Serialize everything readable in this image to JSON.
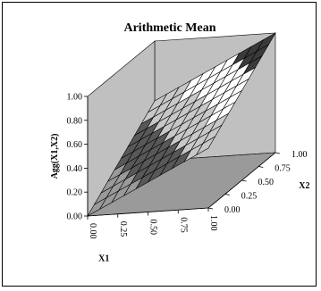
{
  "chart_data": {
    "type": "surface",
    "title": "Arithmetic Mean",
    "xlabel": "X1",
    "ylabel": "X2",
    "zlabel": "Agg(X1,X2)",
    "x_ticks": [
      "0.00",
      "0.25",
      "0.50",
      "0.75",
      "1.00"
    ],
    "y_ticks": [
      "0.00",
      "0.25",
      "0.50",
      "0.75",
      "1.00"
    ],
    "z_ticks": [
      "0.00",
      "0.20",
      "0.40",
      "0.60",
      "0.80",
      "1.00"
    ],
    "xlim": [
      0,
      1
    ],
    "ylim": [
      0,
      1
    ],
    "zlim": [
      0,
      1
    ],
    "function": "z = (x1 + x2) / 2",
    "grid_steps": 10,
    "color_bands": [
      {
        "range": [
          0.0,
          0.2
        ],
        "color": "#9a9a9a"
      },
      {
        "range": [
          0.2,
          0.4
        ],
        "color": "#585858"
      },
      {
        "range": [
          0.4,
          0.6
        ],
        "color": "#c8c8c8"
      },
      {
        "range": [
          0.6,
          0.8
        ],
        "color": "#ffffff"
      },
      {
        "range": [
          0.8,
          1.0
        ],
        "color": "#3a3a3a"
      }
    ]
  }
}
